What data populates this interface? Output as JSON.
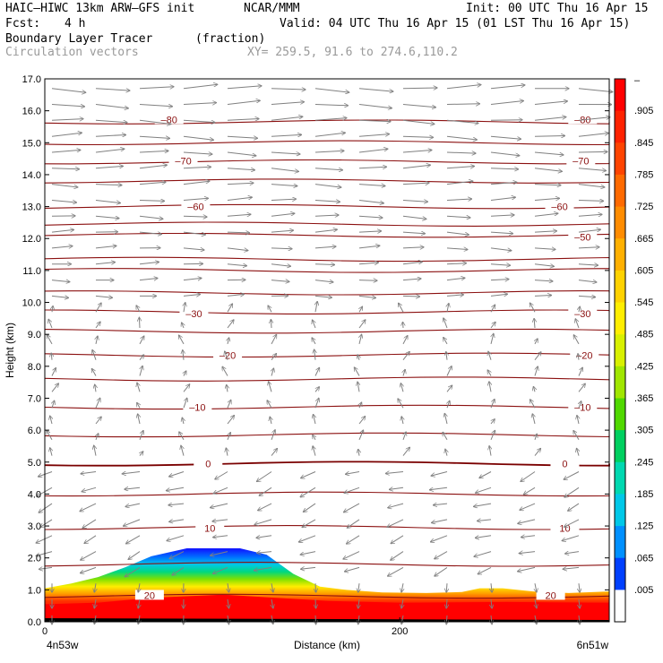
{
  "header": {
    "model": "HAIC–HIWC 13km ARW–GFS init",
    "org": "NCAR/MMM",
    "init": "Init: 00 UTC Thu 16 Apr 15",
    "fcst_label": "Fcst:",
    "fcst_value": "4 h",
    "valid": "Valid: 04 UTC Thu 16 Apr 15 (01 LST Thu 16 Apr 15)",
    "field_name": "Boundary Layer Tracer",
    "field_units": "(fraction)",
    "vector_label": "Circulation vectors",
    "xy_label": "XY= 259.5, 91.6 to 274.6,110.2"
  },
  "chart_data": {
    "type": "heatmap",
    "ylabel": "Height (km)",
    "xlabel": "Distance (km)",
    "ylim": [
      0,
      17
    ],
    "xlim": [
      0,
      318
    ],
    "yticks": [
      "0.0",
      "1.0",
      "2.0",
      "3.0",
      "4.0",
      "5.0",
      "6.0",
      "7.0",
      "8.0",
      "9.0",
      "10.0",
      "11.0",
      "12.0",
      "13.0",
      "14.0",
      "15.0",
      "16.0",
      "17.0"
    ],
    "xticks": [
      {
        "value": 0,
        "label": "0"
      },
      {
        "value": 200,
        "label": "200"
      }
    ],
    "left_endpoint": "4n53w",
    "right_endpoint": "6n51w",
    "colorbar": {
      "labels": [
        "–",
        ".905",
        ".845",
        ".785",
        ".725",
        ".665",
        ".605",
        ".545",
        ".485",
        ".425",
        ".365",
        ".305",
        ".245",
        ".185",
        ".125",
        ".065",
        ".005"
      ],
      "colors": [
        "#ff0000",
        "#ff2200",
        "#ff4400",
        "#ff6a00",
        "#ff8c00",
        "#ffb000",
        "#ffd200",
        "#ffee00",
        "#d8f000",
        "#a0e600",
        "#50d800",
        "#00d060",
        "#00d8b0",
        "#00c8e8",
        "#0090ff",
        "#0040ff",
        "#ffffff"
      ]
    },
    "isotherms": [
      {
        "label": "80",
        "y": 15.65
      },
      {
        "label": "70",
        "y": 14.4
      },
      {
        "label": "60",
        "y": 13.0
      },
      {
        "label": "50",
        "y": 12.1
      },
      {
        "label": "30",
        "y": 9.7
      },
      {
        "label": "20",
        "y": 8.35
      },
      {
        "label": "10",
        "y": 6.72
      },
      {
        "label": "0",
        "y": 4.95
      },
      {
        "label": "10",
        "y": 2.95
      },
      {
        "label": "20",
        "y": 0.8
      }
    ],
    "isotherm_labels": [
      {
        "text": "–80",
        "x": 70,
        "y": 15.73
      },
      {
        "text": "–80",
        "x": 303,
        "y": 15.73
      },
      {
        "text": "–70",
        "x": 78,
        "y": 14.43
      },
      {
        "text": "–70",
        "x": 302,
        "y": 14.43
      },
      {
        "text": "–60",
        "x": 85,
        "y": 13.0
      },
      {
        "text": "–60",
        "x": 290,
        "y": 13.0
      },
      {
        "text": "–50",
        "x": 303,
        "y": 12.05
      },
      {
        "text": "–30",
        "x": 84,
        "y": 9.65
      },
      {
        "text": "–30",
        "x": 303,
        "y": 9.65
      },
      {
        "text": "–20",
        "x": 103,
        "y": 8.35
      },
      {
        "text": "–20",
        "x": 304,
        "y": 8.35
      },
      {
        "text": "–10",
        "x": 86,
        "y": 6.72
      },
      {
        "text": "–10",
        "x": 303,
        "y": 6.72
      },
      {
        "text": "0",
        "x": 92,
        "y": 4.95
      },
      {
        "text": "0",
        "x": 293,
        "y": 4.95
      },
      {
        "text": "10",
        "x": 93,
        "y": 2.93
      },
      {
        "text": "10",
        "x": 293,
        "y": 2.93
      },
      {
        "text": "20",
        "x": 59,
        "y": 0.83
      },
      {
        "text": "20",
        "x": 285,
        "y": 0.83
      }
    ],
    "tracer_top_km": [
      [
        0,
        1.05
      ],
      [
        15,
        1.2
      ],
      [
        30,
        1.4
      ],
      [
        45,
        1.7
      ],
      [
        60,
        2.05
      ],
      [
        80,
        2.3
      ],
      [
        110,
        2.3
      ],
      [
        125,
        2.1
      ],
      [
        140,
        1.5
      ],
      [
        155,
        1.1
      ],
      [
        170,
        1.0
      ],
      [
        190,
        0.92
      ],
      [
        215,
        0.9
      ],
      [
        235,
        0.93
      ],
      [
        245,
        1.05
      ],
      [
        258,
        1.05
      ],
      [
        275,
        0.95
      ],
      [
        295,
        0.9
      ],
      [
        318,
        0.95
      ]
    ],
    "tracer_red_top_km": [
      [
        0,
        0.55
      ],
      [
        30,
        0.6
      ],
      [
        60,
        0.75
      ],
      [
        100,
        0.85
      ],
      [
        130,
        0.75
      ],
      [
        160,
        0.65
      ],
      [
        200,
        0.6
      ],
      [
        260,
        0.62
      ],
      [
        318,
        0.6
      ]
    ]
  }
}
